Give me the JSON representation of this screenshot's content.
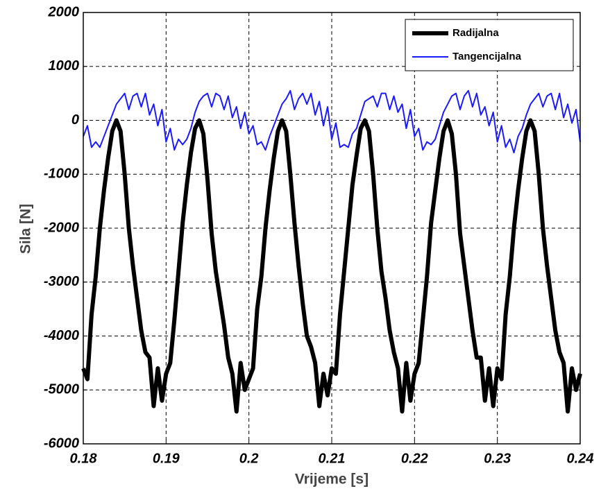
{
  "chart_data": {
    "type": "line",
    "xlabel": "Vrijeme [s]",
    "ylabel": "Sila [N]",
    "xlim": [
      0.18,
      0.24
    ],
    "xticks": [
      0.18,
      0.19,
      0.2,
      0.21,
      0.22,
      0.23,
      0.24
    ],
    "ylim": [
      -6000,
      2000
    ],
    "yticks": [
      -6000,
      -5000,
      -4000,
      -3000,
      -2000,
      -1000,
      0,
      1000,
      2000
    ],
    "grid": true,
    "legend": "upper right",
    "x": [
      0.18,
      0.1805,
      0.181,
      0.1815,
      0.182,
      0.1825,
      0.183,
      0.1835,
      0.184,
      0.1845,
      0.185,
      0.1855,
      0.186,
      0.1865,
      0.187,
      0.1875,
      0.188,
      0.1885,
      0.189,
      0.1895,
      0.19,
      0.1905,
      0.191,
      0.1915,
      0.192,
      0.1925,
      0.193,
      0.1935,
      0.194,
      0.1945,
      0.195,
      0.1955,
      0.196,
      0.1965,
      0.197,
      0.1975,
      0.198,
      0.1985,
      0.199,
      0.1995,
      0.2,
      0.2005,
      0.201,
      0.2015,
      0.202,
      0.2025,
      0.203,
      0.2035,
      0.204,
      0.2045,
      0.205,
      0.2055,
      0.206,
      0.2065,
      0.207,
      0.2075,
      0.208,
      0.2085,
      0.209,
      0.2095,
      0.21,
      0.2105,
      0.211,
      0.2115,
      0.212,
      0.2125,
      0.213,
      0.2135,
      0.214,
      0.2145,
      0.215,
      0.2155,
      0.216,
      0.2165,
      0.217,
      0.2175,
      0.218,
      0.2185,
      0.219,
      0.2195,
      0.22,
      0.2205,
      0.221,
      0.2215,
      0.222,
      0.2225,
      0.223,
      0.2235,
      0.224,
      0.2245,
      0.225,
      0.2255,
      0.226,
      0.2265,
      0.227,
      0.2275,
      0.228,
      0.2285,
      0.229,
      0.2295,
      0.23,
      0.2305,
      0.231,
      0.2315,
      0.232,
      0.2325,
      0.233,
      0.2335,
      0.234,
      0.2345,
      0.235,
      0.2355,
      0.236,
      0.2365,
      0.237,
      0.2375,
      0.238,
      0.2385,
      0.239,
      0.2395,
      0.24
    ],
    "series": [
      {
        "name": "Radijalna",
        "color": "#000000",
        "values": [
          -4600,
          -4800,
          -3600,
          -2900,
          -2000,
          -1300,
          -700,
          -200,
          0,
          -200,
          -1000,
          -2000,
          -2700,
          -3300,
          -3900,
          -4300,
          -4400,
          -5300,
          -4600,
          -5200,
          -4700,
          -4500,
          -3700,
          -2800,
          -1900,
          -1200,
          -600,
          -150,
          0,
          -250,
          -1100,
          -2100,
          -2800,
          -3300,
          -3800,
          -4400,
          -4700,
          -5400,
          -4500,
          -5000,
          -4800,
          -4600,
          -3500,
          -2900,
          -2000,
          -1300,
          -700,
          -200,
          0,
          -200,
          -1000,
          -1900,
          -2700,
          -3400,
          -4000,
          -4200,
          -4500,
          -5300,
          -4700,
          -5100,
          -4600,
          -4700,
          -3600,
          -2800,
          -2000,
          -1200,
          -650,
          -150,
          0,
          -200,
          -1000,
          -2000,
          -2800,
          -3300,
          -3900,
          -4300,
          -4600,
          -5400,
          -4500,
          -5200,
          -4700,
          -4500,
          -3700,
          -2900,
          -1900,
          -1300,
          -700,
          -200,
          0,
          -250,
          -1000,
          -2100,
          -2700,
          -3300,
          -3900,
          -4400,
          -4400,
          -5200,
          -4600,
          -5300,
          -4600,
          -4800,
          -3600,
          -2900,
          -2000,
          -1300,
          -700,
          -200,
          0,
          -200,
          -1000,
          -2000,
          -2700,
          -3300,
          -3900,
          -4300,
          -4500,
          -5400,
          -4600,
          -5000,
          -4700
        ]
      },
      {
        "name": "Tangencijalna",
        "color": "#1a1aff",
        "values": [
          -300,
          -100,
          -500,
          -400,
          -500,
          -300,
          -100,
          100,
          300,
          400,
          500,
          200,
          450,
          500,
          250,
          500,
          100,
          300,
          -100,
          200,
          -400,
          -150,
          -550,
          -350,
          -450,
          -350,
          -150,
          150,
          350,
          450,
          500,
          250,
          500,
          450,
          200,
          450,
          50,
          250,
          -150,
          150,
          -250,
          -100,
          -450,
          -400,
          -550,
          -300,
          -100,
          100,
          300,
          400,
          550,
          200,
          400,
          500,
          300,
          500,
          100,
          350,
          -100,
          250,
          -350,
          -50,
          -500,
          -450,
          -500,
          -250,
          -150,
          100,
          350,
          400,
          450,
          250,
          500,
          500,
          200,
          450,
          150,
          300,
          -150,
          200,
          -300,
          -150,
          -550,
          -400,
          -450,
          -350,
          -100,
          150,
          300,
          450,
          500,
          200,
          450,
          550,
          250,
          500,
          100,
          250,
          -100,
          150,
          -400,
          -100,
          -500,
          -350,
          -600,
          -300,
          -150,
          100,
          300,
          400,
          500,
          250,
          450,
          500,
          200,
          500,
          50,
          300,
          -50,
          200,
          -400
        ]
      }
    ]
  }
}
